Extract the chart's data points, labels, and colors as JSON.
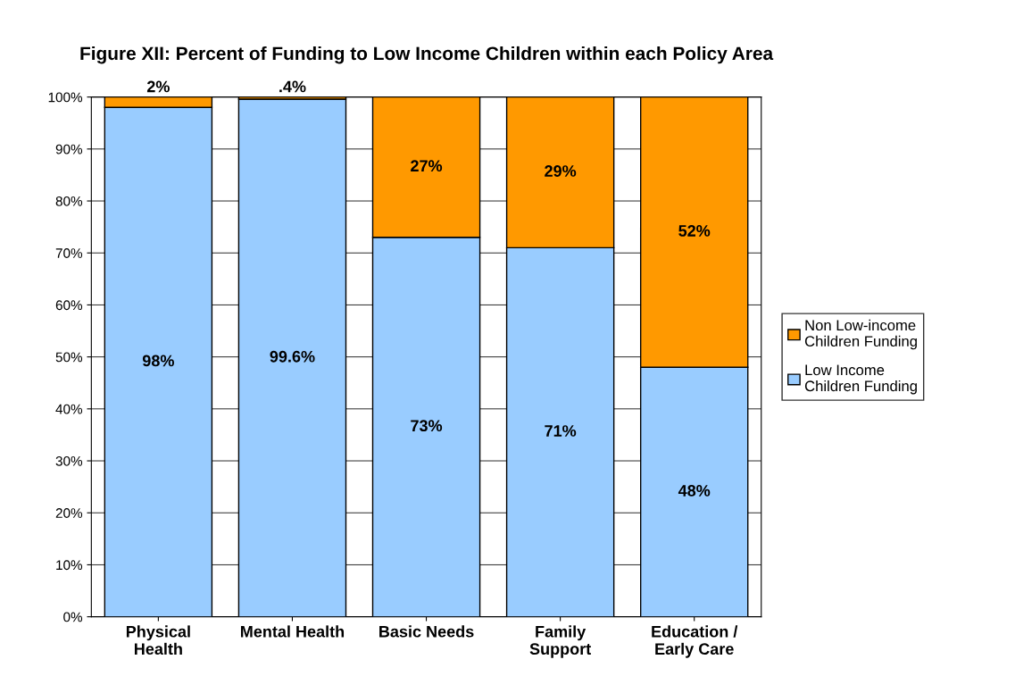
{
  "chart_data": {
    "type": "bar",
    "title": "Figure XII: Percent of Funding to Low Income Children within each Policy Area",
    "categories": [
      "Physical\nHealth",
      "Mental Health",
      "Basic Needs",
      "Family\nSupport",
      "Education /\nEarly Care"
    ],
    "stacked": true,
    "series": [
      {
        "name": "Low Income\nChildren Funding",
        "color": "#99ccff",
        "values": [
          98,
          99.6,
          73,
          71,
          48
        ],
        "value_labels": [
          "98%",
          "99.6%",
          "73%",
          "71%",
          "48%"
        ]
      },
      {
        "name": "Non Low-income\nChildren Funding",
        "color": "#ff9900",
        "values": [
          2,
          0.4,
          27,
          29,
          52
        ],
        "value_labels": [
          "2%",
          ".4%",
          "27%",
          "29%",
          "52%"
        ]
      }
    ],
    "ylim": [
      0,
      100
    ],
    "yticks": [
      {
        "value": 0,
        "label": "0%"
      },
      {
        "value": 10,
        "label": "10%"
      },
      {
        "value": 20,
        "label": "20%"
      },
      {
        "value": 30,
        "label": "30%"
      },
      {
        "value": 40,
        "label": "40%"
      },
      {
        "value": 50,
        "label": "50%"
      },
      {
        "value": 60,
        "label": "60%"
      },
      {
        "value": 70,
        "label": "70%"
      },
      {
        "value": 80,
        "label": "80%"
      },
      {
        "value": 90,
        "label": "90%"
      },
      {
        "value": 100,
        "label": "100%"
      }
    ],
    "grid": "y",
    "legend": "right"
  }
}
